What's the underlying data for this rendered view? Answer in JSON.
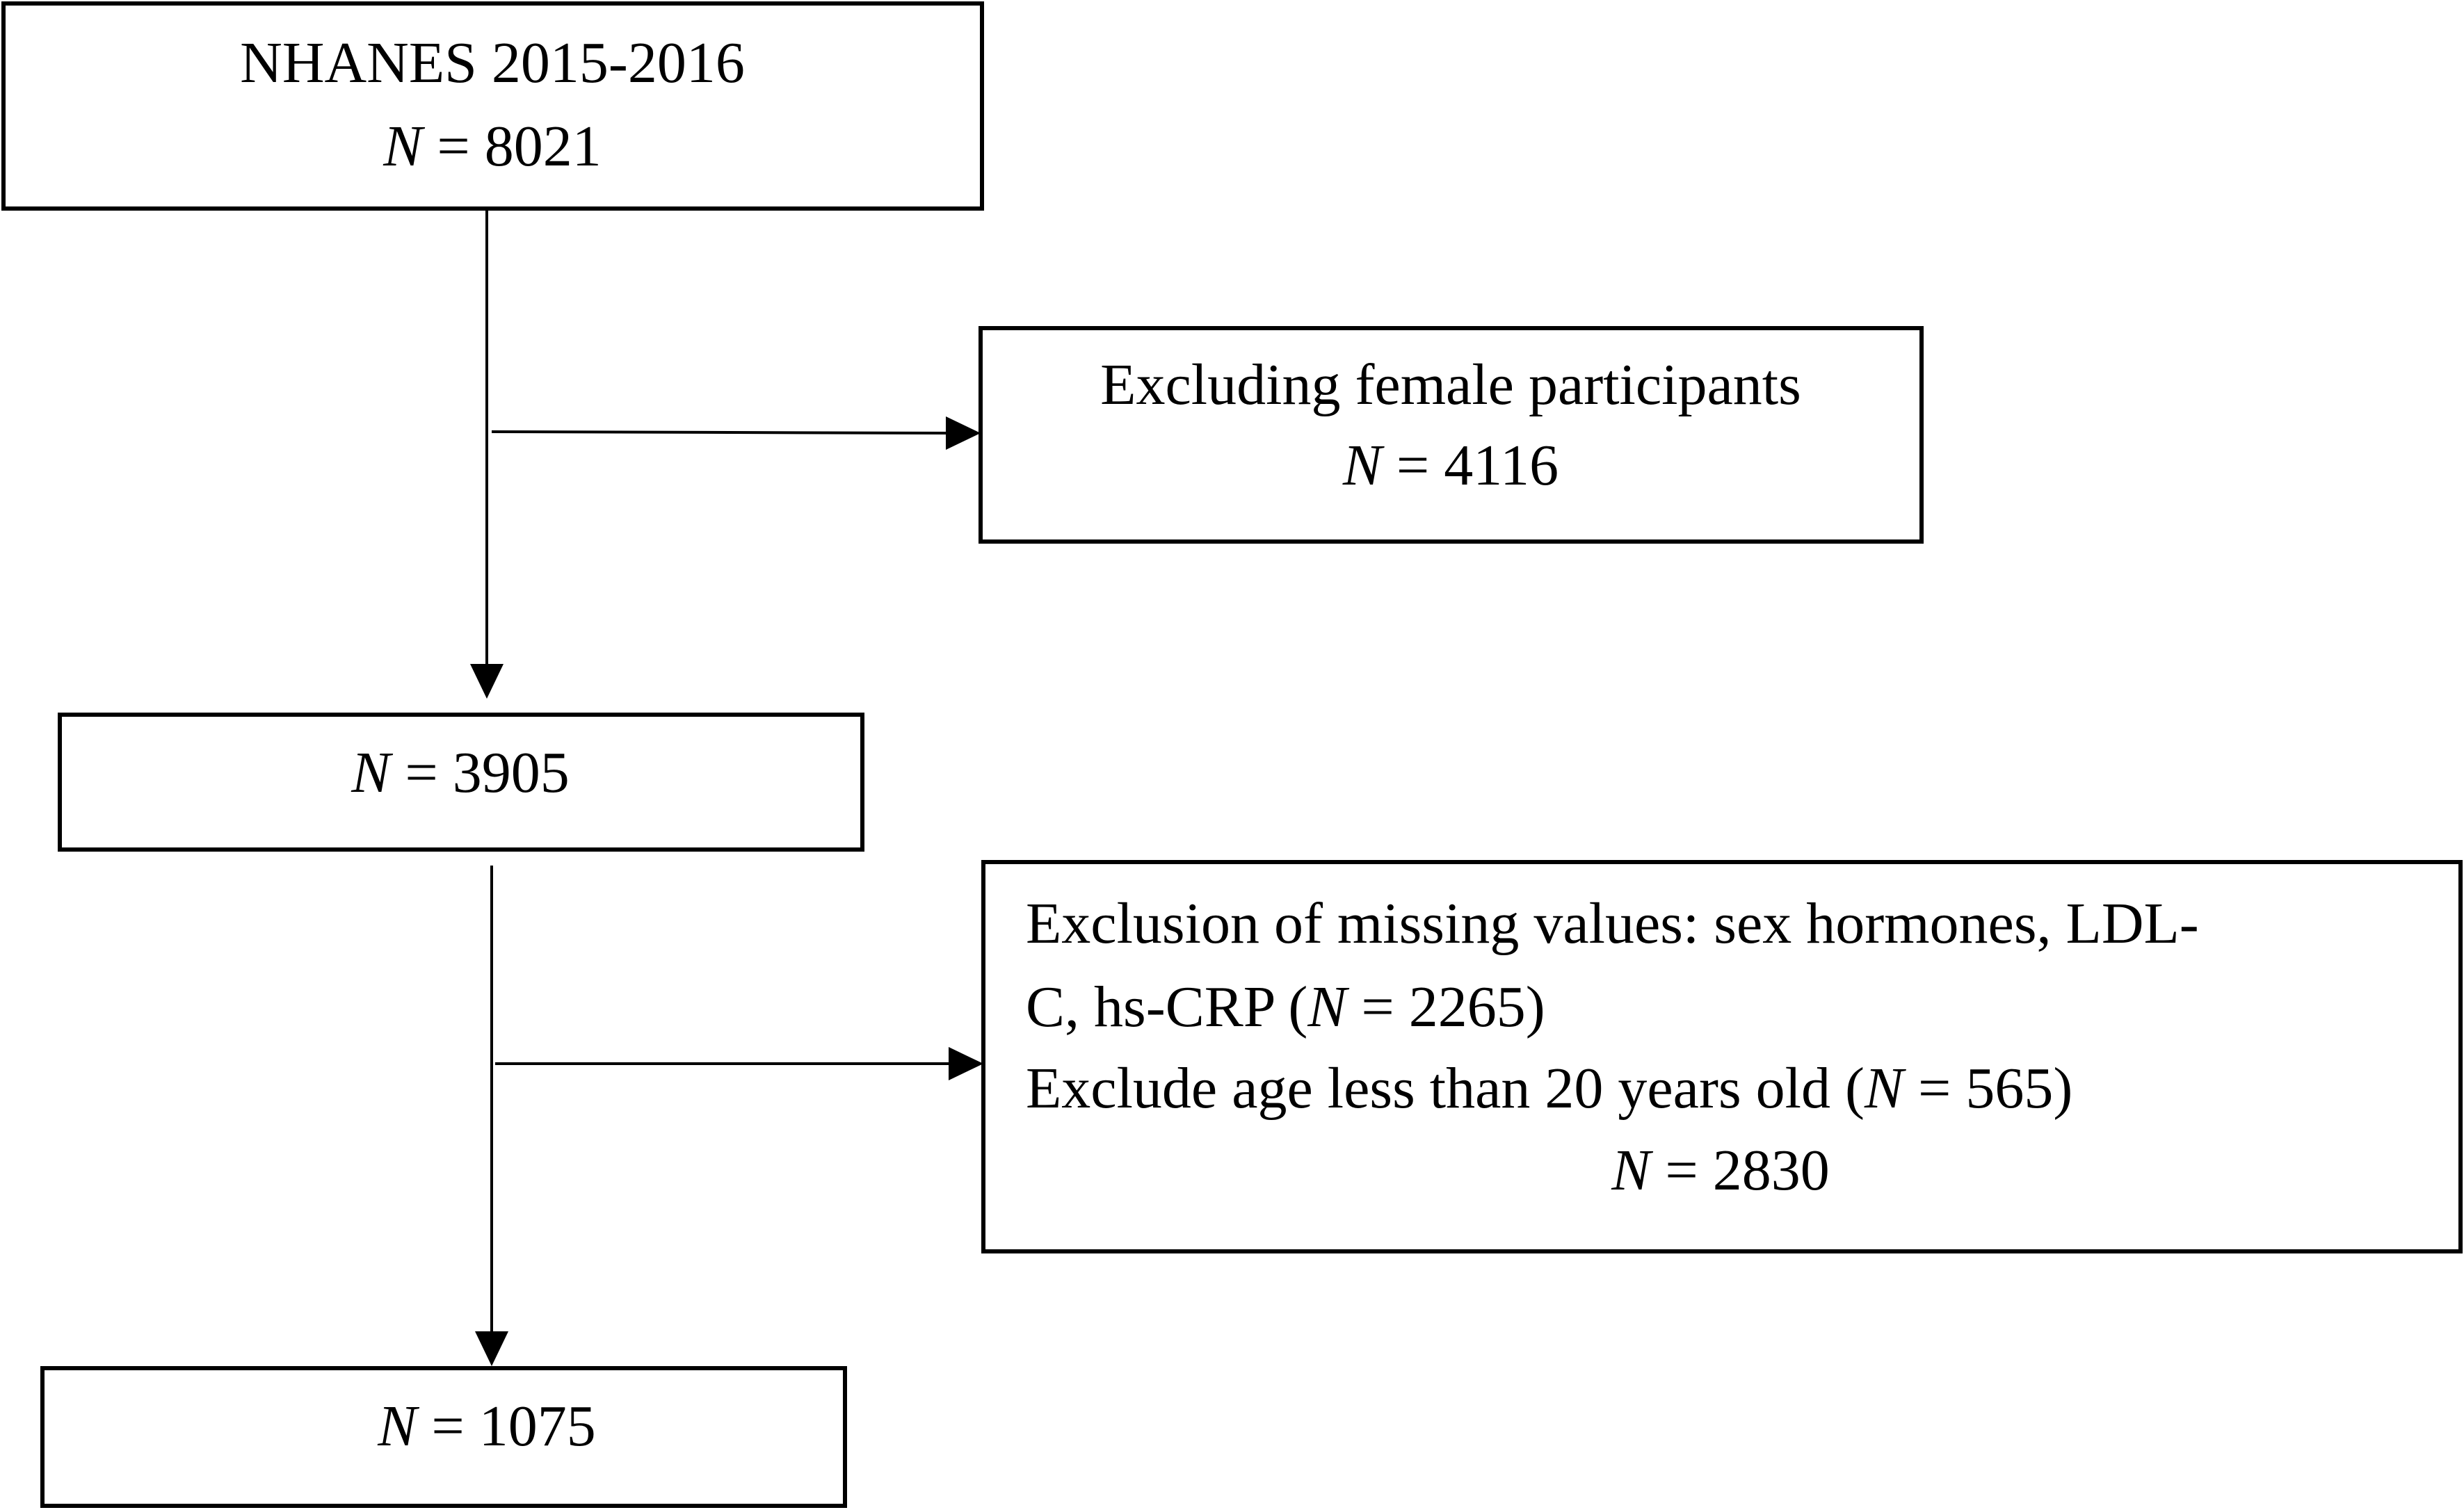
{
  "nodes": [
    {
      "lines": [
        [
          {
            "text": "NHANES 2015-2016"
          }
        ],
        [
          {
            "text": "N",
            "italic": true
          },
          {
            "text": " = 8021"
          }
        ]
      ]
    },
    {
      "lines": [
        [
          {
            "text": "Excluding female participants"
          }
        ],
        [
          {
            "text": "N",
            "italic": true
          },
          {
            "text": " = 4116"
          }
        ]
      ]
    },
    {
      "lines": [
        [
          {
            "text": "N",
            "italic": true
          },
          {
            "text": " = 3905"
          }
        ]
      ]
    },
    {
      "lines": [
        [
          {
            "text": "Exclusion of missing values: sex hormones, LDL-"
          }
        ],
        [
          {
            "text": "C, hs-CRP ("
          },
          {
            "text": "N",
            "italic": true
          },
          {
            "text": " = 2265)"
          }
        ],
        [
          {
            "text": "Exclude age less than 20 years old ("
          },
          {
            "text": "N",
            "italic": true
          },
          {
            "text": " = 565)"
          }
        ],
        [
          {
            "text": "N",
            "italic": true
          },
          {
            "text": " = 2830"
          }
        ]
      ]
    },
    {
      "lines": [
        [
          {
            "text": "N",
            "italic": true
          },
          {
            "text": " = 1075"
          }
        ]
      ]
    }
  ]
}
